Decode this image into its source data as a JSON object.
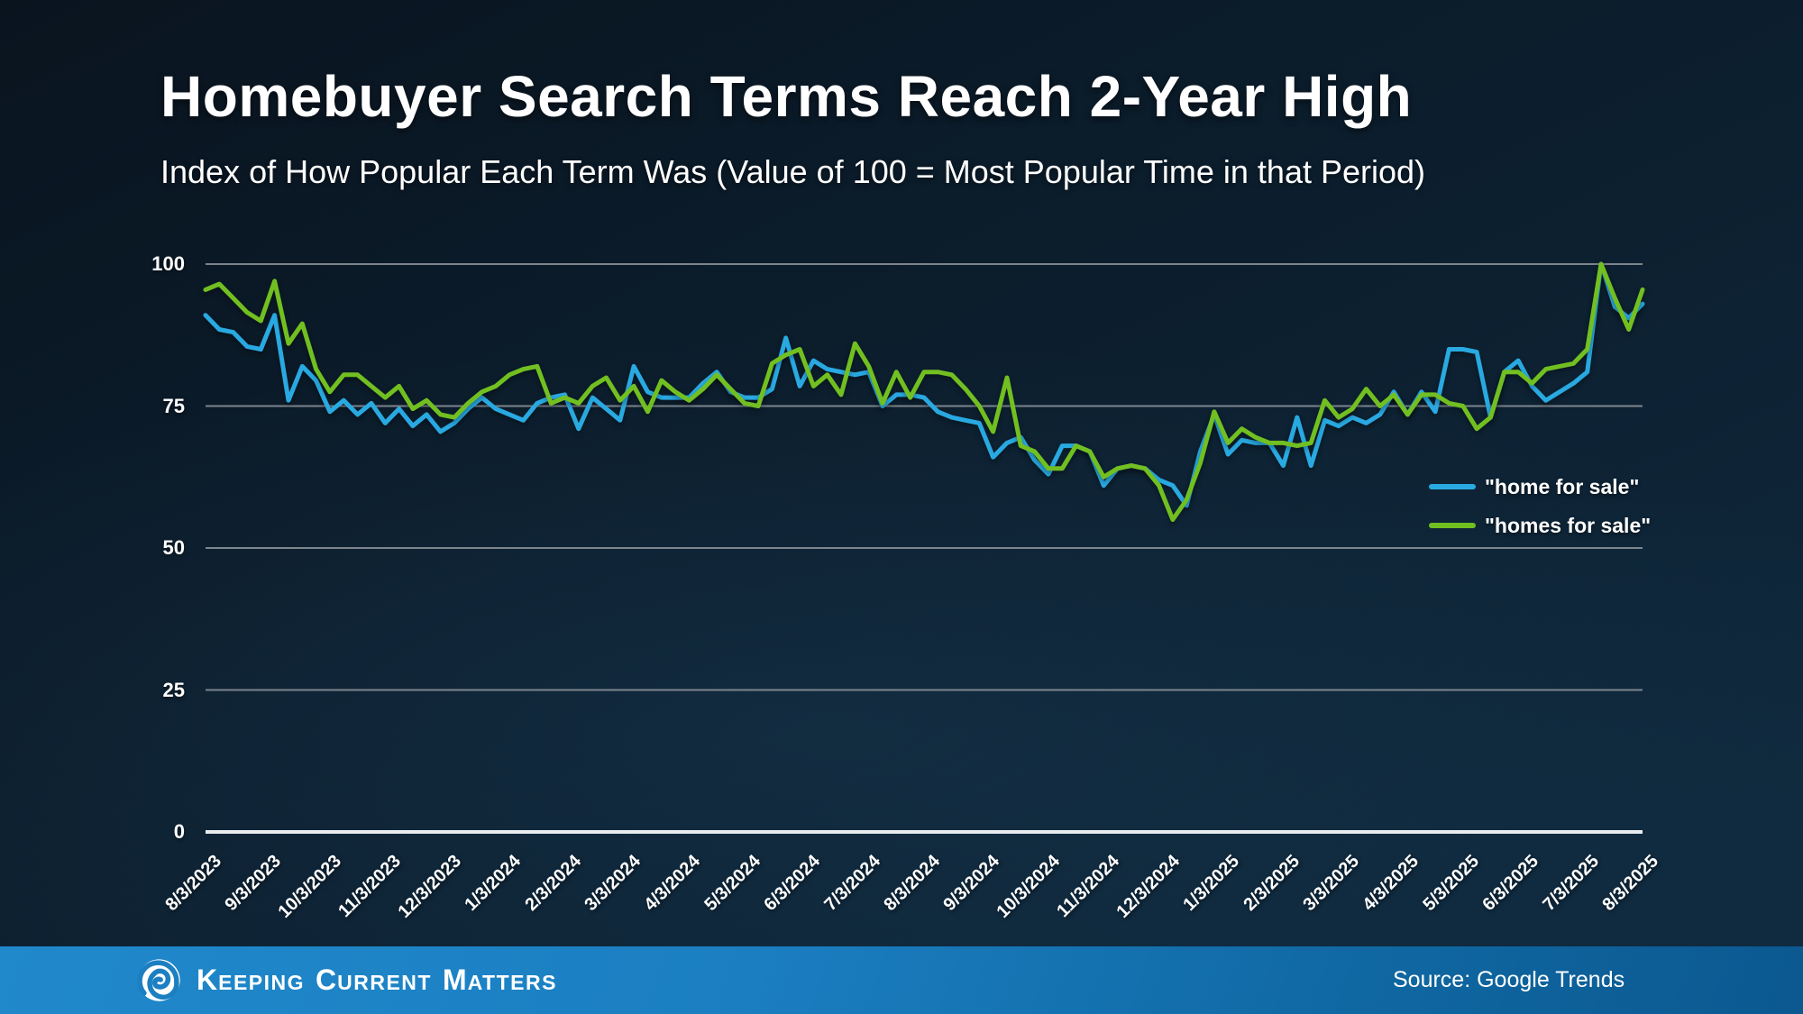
{
  "title": "Homebuyer Search Terms Reach 2-Year High",
  "subtitle": "Index of How Popular Each Term Was (Value of 100 = Most Popular Time in that Period)",
  "footer": {
    "brand_name": "Keeping Current Matters",
    "brand_words": [
      {
        "initial": "K",
        "rest": "eeping"
      },
      {
        "initial": "C",
        "rest": "urrent"
      },
      {
        "initial": "M",
        "rest": "atters"
      }
    ],
    "logo_icon": "kcm-spiral-logo",
    "source_label": "Source: Google Trends"
  },
  "colors": {
    "background_top": "#0a141f",
    "background_bottom": "#102c42",
    "footer_left": "#2089cb",
    "footer_right": "#0c5890",
    "gridline": "#7d858d",
    "axis": "#e9edf0",
    "text": "#ffffff",
    "home_for_sale_blue": "#29a9e1",
    "homes_for_sale_green": "#72bf21"
  },
  "chart_data": {
    "type": "line",
    "x_unit": "weekly",
    "x_range_labels": [
      "8/3/2023",
      "8/3/2025"
    ],
    "x_tick_labels": [
      "8/3/2023",
      "9/3/2023",
      "10/3/2023",
      "11/3/2023",
      "12/3/2023",
      "1/3/2024",
      "2/3/2024",
      "3/3/2024",
      "4/3/2024",
      "5/3/2024",
      "6/3/2024",
      "7/3/2024",
      "8/3/2024",
      "9/3/2024",
      "10/3/2024",
      "11/3/2024",
      "12/3/2024",
      "1/3/2025",
      "2/3/2025",
      "3/3/2025",
      "4/3/2025",
      "5/3/2025",
      "6/3/2025",
      "7/3/2025",
      "8/3/2025"
    ],
    "y_ticks": [
      0,
      25,
      50,
      75,
      100
    ],
    "ylim": [
      0,
      100
    ],
    "grid": true,
    "legend_position": "right-middle",
    "series": [
      {
        "name": "\"home for sale\"",
        "color": "#29a9e1",
        "values": [
          91,
          88.5,
          88,
          85.5,
          85,
          91,
          76,
          82,
          79.5,
          74,
          76,
          73.5,
          75.5,
          72,
          74.5,
          71.5,
          73.5,
          70.5,
          72,
          74.5,
          76.5,
          74.5,
          73.5,
          72.5,
          75.5,
          76.5,
          77,
          71,
          76.5,
          74.5,
          72.5,
          82,
          77.5,
          76.5,
          76.5,
          76.5,
          79,
          81,
          77.5,
          76.5,
          76.5,
          78,
          87,
          78.5,
          83,
          81.5,
          81,
          80.5,
          81,
          75,
          77,
          77,
          76.5,
          74,
          73,
          72.5,
          72,
          66,
          68.5,
          69.5,
          65.5,
          63,
          68,
          68,
          67,
          61,
          64,
          64.5,
          64,
          62,
          61,
          57.5,
          67,
          73.5,
          66.5,
          69,
          68.5,
          68.5,
          64.5,
          73,
          64.5,
          72.5,
          71.5,
          73,
          72,
          73.5,
          77.5,
          73.5,
          77.5,
          74,
          85,
          85,
          84.5,
          73,
          81,
          83,
          78.5,
          76,
          77.5,
          79,
          81,
          100,
          92.5,
          90.5,
          93
        ]
      },
      {
        "name": "\"homes for sale\"",
        "color": "#72bf21",
        "values": [
          95.5,
          96.5,
          94,
          91.5,
          90,
          97,
          86,
          89.5,
          81.5,
          77.5,
          80.5,
          80.5,
          78.5,
          76.5,
          78.5,
          74.5,
          76,
          73.5,
          73,
          75.5,
          77.5,
          78.5,
          80.5,
          81.5,
          82,
          75.5,
          76.5,
          75.5,
          78.5,
          80,
          76,
          78.5,
          74,
          79.5,
          77.5,
          76,
          78,
          80.5,
          78,
          75.5,
          75,
          82.5,
          84,
          85,
          78.5,
          80.5,
          77,
          86,
          82,
          75.5,
          81,
          76.5,
          81,
          81,
          80.5,
          78,
          75,
          70.5,
          80,
          68,
          67,
          64,
          64,
          68,
          67,
          62.5,
          64,
          64.5,
          64,
          61,
          55,
          58.5,
          65,
          74,
          68.5,
          71,
          69.5,
          68.5,
          68.5,
          68,
          68.5,
          76,
          73,
          74.5,
          78,
          75,
          77,
          73.5,
          77,
          77,
          75.5,
          75,
          71,
          73,
          81,
          81,
          79,
          81.5,
          82,
          82.5,
          85,
          100,
          94,
          88.5,
          95.5
        ]
      }
    ]
  }
}
